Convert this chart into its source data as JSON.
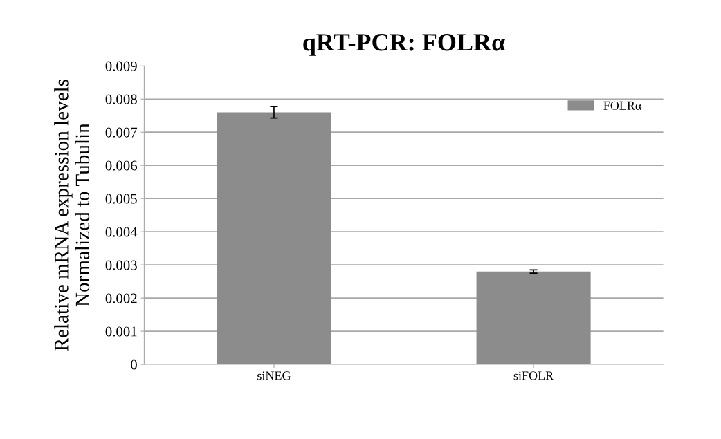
{
  "chart_data": {
    "type": "bar",
    "title": "qRT-PCR: FOLRα",
    "ylabel": "Relative mRNA expression levels\nNormalized to Tubulin",
    "categories": [
      "siNEG",
      "siFOLR"
    ],
    "series": [
      {
        "name": "FOLRα",
        "color": "#8c8c8c",
        "values": [
          0.0076,
          0.0028
        ],
        "errors": [
          0.00017,
          5e-05
        ]
      }
    ],
    "ylim": [
      0,
      0.009
    ],
    "yticks": [
      0,
      0.001,
      0.002,
      0.003,
      0.004,
      0.005,
      0.006,
      0.007,
      0.008,
      0.009
    ],
    "grid": "y",
    "legend": "top right"
  }
}
